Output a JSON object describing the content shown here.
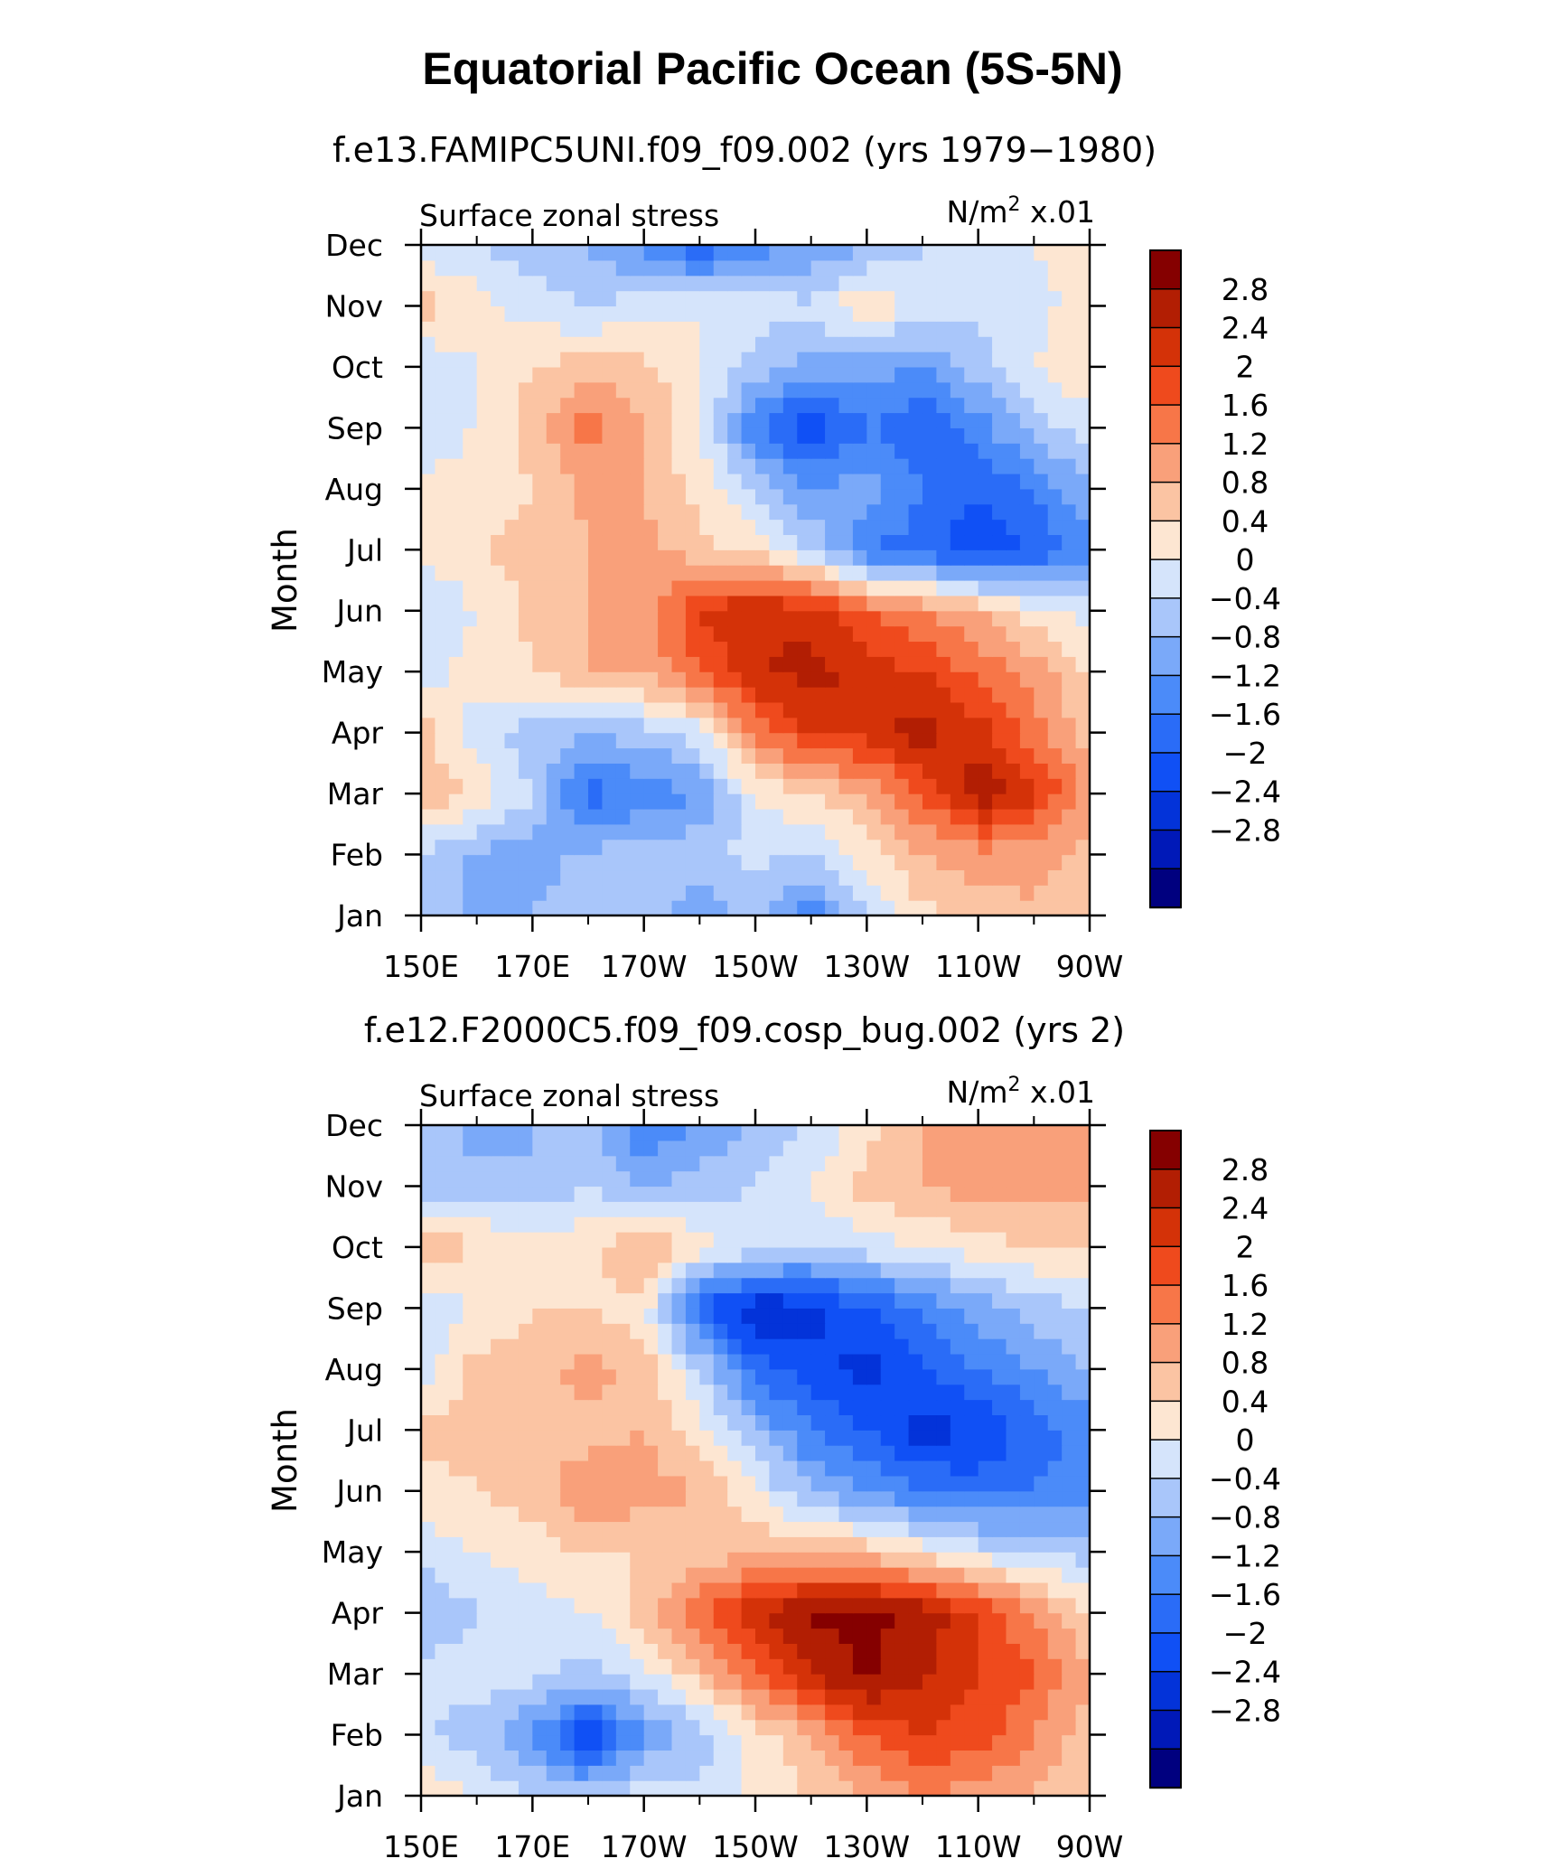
{
  "figure": {
    "title": "Equatorial Pacific Ocean (5S-5N)"
  },
  "colors": {
    "levels": [
      "#00007f",
      "#0019b8",
      "#0333d9",
      "#1050f5",
      "#2a6cf7",
      "#4b8bf9",
      "#7aa9f9",
      "#a9c6fa",
      "#d5e4fb",
      "#fde6d2",
      "#fbc4a3",
      "#f9a07a",
      "#f77648",
      "#ef4a1d",
      "#d43208",
      "#b21e03",
      "#850000"
    ],
    "frame": "#000000"
  },
  "chart_data": [
    {
      "type": "heatmap",
      "title": "f.e13.FAMIPC5UNI.f09_f09.002 (yrs 1979−1980)",
      "variable": "Surface zonal stress",
      "units_prefix": "N/m",
      "units_superscript": "2",
      "units_suffix": " x.01",
      "ylabel": "Month",
      "xticklabels": [
        "150E",
        "170E",
        "170W",
        "150W",
        "130W",
        "110W",
        "90W"
      ],
      "yticklabels": [
        "Jan",
        "Feb",
        "Mar",
        "Apr",
        "May",
        "Jun",
        "Jul",
        "Aug",
        "Sep",
        "Oct",
        "Nov",
        "Dec"
      ],
      "xlim": [
        150,
        270
      ],
      "colorbar_labels": [
        "2.8",
        "2.4",
        "2",
        "1.6",
        "1.2",
        "0.8",
        "0.4",
        "0",
        "−0.4",
        "−0.8",
        "−1.2",
        "−1.6",
        "−2",
        "−2.4",
        "−2.8"
      ],
      "contour_levels": [
        -2.8,
        -2.4,
        -2.0,
        -1.6,
        -1.2,
        -0.8,
        -0.4,
        0,
        0.4,
        0.8,
        1.2,
        1.6,
        2.0,
        2.4,
        2.8
      ],
      "lon": [
        150,
        160,
        170,
        180,
        190,
        200,
        210,
        220,
        230,
        240,
        250,
        260,
        270
      ],
      "values": [
        [
          -0.6,
          -0.9,
          -0.8,
          -0.5,
          -0.6,
          -1.2,
          -0.6,
          -1.6,
          -0.4,
          0.3,
          0.6,
          0.7,
          0.6
        ],
        [
          -0.4,
          -0.9,
          -1.0,
          -0.7,
          -0.5,
          -0.5,
          -0.3,
          -0.4,
          0.2,
          0.8,
          1.0,
          1.0,
          0.6
        ],
        [
          0.8,
          0.3,
          -0.4,
          -1.8,
          -1.5,
          -1.2,
          0.0,
          0.4,
          0.8,
          1.6,
          2.7,
          2.1,
          1.0
        ],
        [
          0.6,
          -0.3,
          -0.6,
          -0.8,
          -0.6,
          -0.2,
          1.4,
          2.0,
          2.2,
          2.6,
          2.2,
          1.4,
          0.6
        ],
        [
          -0.2,
          0.2,
          0.4,
          0.8,
          0.9,
          1.6,
          2.3,
          2.6,
          2.2,
          2.0,
          1.5,
          1.0,
          0.4
        ],
        [
          -0.4,
          0.0,
          0.5,
          0.8,
          0.9,
          2.0,
          2.4,
          2.2,
          1.6,
          1.2,
          0.8,
          0.2,
          -0.2
        ],
        [
          0.0,
          0.4,
          0.5,
          0.8,
          0.9,
          0.6,
          0.2,
          -0.4,
          -1.6,
          -1.8,
          -2.4,
          -2.0,
          -1.4
        ],
        [
          0.0,
          0.2,
          0.4,
          0.9,
          0.8,
          0.2,
          -0.4,
          -1.2,
          -1.0,
          -1.6,
          -2.0,
          -1.6,
          -0.8
        ],
        [
          -0.2,
          0.0,
          0.6,
          1.4,
          0.9,
          0.0,
          -1.6,
          -2.4,
          -1.6,
          -2.0,
          -1.4,
          -0.6,
          -0.2
        ],
        [
          -0.4,
          0.0,
          0.4,
          0.6,
          0.5,
          0.0,
          -0.6,
          -1.0,
          -1.0,
          -1.2,
          -0.6,
          0.0,
          0.4
        ],
        [
          0.6,
          0.2,
          -0.2,
          -0.4,
          -0.2,
          0.0,
          -0.2,
          -0.3,
          0.4,
          -0.2,
          -0.3,
          -0.2,
          0.3
        ],
        [
          -0.3,
          -0.4,
          -0.6,
          -0.8,
          -1.4,
          -2.0,
          -1.4,
          -1.2,
          -0.8,
          -0.4,
          -0.2,
          0.0,
          0.2
        ]
      ]
    },
    {
      "type": "heatmap",
      "title": "f.e12.F2000C5.f09_f09.cosp_bug.002 (yrs 2)",
      "variable": "Surface zonal stress",
      "units_prefix": "N/m",
      "units_superscript": "2",
      "units_suffix": " x.01",
      "ylabel": "Month",
      "xticklabels": [
        "150E",
        "170E",
        "170W",
        "150W",
        "130W",
        "110W",
        "90W"
      ],
      "yticklabels": [
        "Jan",
        "Feb",
        "Mar",
        "Apr",
        "May",
        "Jun",
        "Jul",
        "Aug",
        "Sep",
        "Oct",
        "Nov",
        "Dec"
      ],
      "xlim": [
        150,
        270
      ],
      "colorbar_labels": [
        "2.8",
        "2.4",
        "2",
        "1.6",
        "1.2",
        "0.8",
        "0.4",
        "0",
        "−0.4",
        "−0.8",
        "−1.2",
        "−1.6",
        "−2",
        "−2.4",
        "−2.8"
      ],
      "contour_levels": [
        -2.8,
        -2.4,
        -2.0,
        -1.6,
        -1.2,
        -0.8,
        -0.4,
        0,
        0.4,
        0.8,
        1.2,
        1.6,
        2.0,
        2.4,
        2.8
      ],
      "lon": [
        150,
        160,
        170,
        180,
        190,
        200,
        210,
        220,
        230,
        240,
        250,
        260,
        270
      ],
      "values": [
        [
          0.4,
          0.0,
          -0.4,
          -0.6,
          -0.2,
          -0.3,
          0.1,
          0.4,
          0.8,
          1.2,
          1.0,
          0.8,
          0.4
        ],
        [
          -0.4,
          -0.6,
          -1.2,
          -2.4,
          -1.2,
          -0.6,
          0.2,
          0.8,
          1.6,
          2.0,
          1.8,
          1.2,
          0.6
        ],
        [
          -0.2,
          -0.2,
          -0.3,
          -0.6,
          -0.2,
          0.6,
          1.6,
          2.4,
          2.9,
          2.5,
          2.0,
          1.6,
          0.8
        ],
        [
          -0.9,
          -0.4,
          -0.2,
          0.0,
          0.6,
          1.6,
          2.4,
          2.9,
          2.9,
          2.7,
          2.0,
          1.2,
          0.4
        ],
        [
          -0.2,
          0.0,
          0.2,
          0.4,
          0.4,
          0.4,
          0.8,
          0.8,
          0.6,
          0.2,
          -0.2,
          -0.4,
          -0.6
        ],
        [
          0.2,
          0.4,
          0.6,
          1.2,
          1.0,
          0.8,
          0.0,
          -0.8,
          -1.2,
          -1.6,
          -1.8,
          -1.6,
          -1.4
        ],
        [
          0.6,
          0.5,
          0.4,
          0.6,
          0.8,
          0.2,
          -0.8,
          -1.6,
          -2.0,
          -2.6,
          -2.4,
          -1.8,
          -1.4
        ],
        [
          -0.3,
          0.6,
          0.6,
          1.0,
          0.6,
          -0.4,
          -1.8,
          -2.2,
          -2.6,
          -2.0,
          -1.6,
          -1.2,
          -0.8
        ],
        [
          -0.4,
          0.0,
          0.4,
          0.4,
          0.2,
          -2.0,
          -2.8,
          -2.6,
          -2.0,
          -1.6,
          -1.0,
          -0.6,
          -0.4
        ],
        [
          0.8,
          0.4,
          0.2,
          0.3,
          0.8,
          0.2,
          -0.2,
          -0.4,
          -0.2,
          0.0,
          0.2,
          0.4,
          0.4
        ],
        [
          -0.6,
          -0.6,
          -0.8,
          -0.4,
          -0.8,
          -0.6,
          -0.4,
          0.0,
          0.6,
          0.8,
          1.0,
          1.0,
          1.0
        ],
        [
          -0.4,
          -1.0,
          -0.8,
          -0.6,
          -1.6,
          -1.2,
          -0.8,
          -0.4,
          0.2,
          0.8,
          1.0,
          1.0,
          1.2
        ]
      ]
    }
  ]
}
